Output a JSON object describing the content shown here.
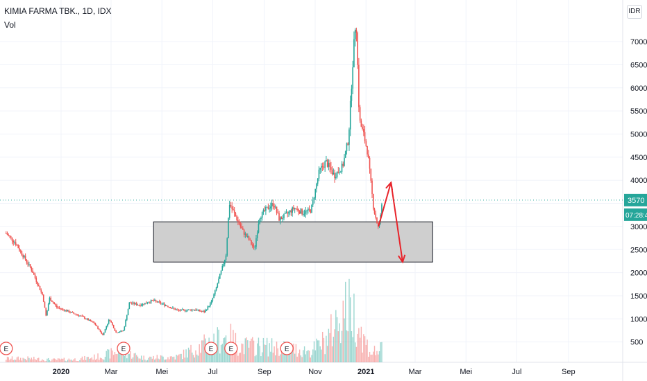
{
  "header": {
    "title": "KIMIA FARMA TBK., 1D, IDX",
    "volume_label": "Vol",
    "currency": "IDR"
  },
  "price_badge": {
    "price": "3570",
    "countdown": "07:28:4",
    "color": "#26a69a"
  },
  "colors": {
    "up": "#26a69a",
    "down": "#ef5350",
    "arrow": "#e8232a",
    "zone_fill": "#cfcfcf",
    "grid": "#f0f3fa",
    "earnings": "#ef5350"
  },
  "chart_data": {
    "type": "candlestick",
    "y_axis": {
      "min": 0,
      "max": 7800,
      "ticks": [
        500,
        1000,
        1500,
        2000,
        2500,
        3000,
        3500,
        4000,
        4500,
        5000,
        5500,
        6000,
        6500,
        7000
      ]
    },
    "x_axis": {
      "ticks": [
        {
          "label": "2020",
          "t": 0
        },
        {
          "label": "Mar",
          "t": 60
        },
        {
          "label": "Mei",
          "t": 121
        },
        {
          "label": "Jul",
          "t": 182
        },
        {
          "label": "Sep",
          "t": 244
        },
        {
          "label": "Nov",
          "t": 305
        },
        {
          "label": "2021",
          "t": 366
        },
        {
          "label": "Mar",
          "t": 425
        },
        {
          "label": "Mei",
          "t": 486
        },
        {
          "label": "Jul",
          "t": 547
        },
        {
          "label": "Sep",
          "t": 609
        }
      ]
    },
    "price_path": [
      [
        -66,
        2850
      ],
      [
        -55,
        2650
      ],
      [
        -45,
        2350
      ],
      [
        -35,
        2050
      ],
      [
        -28,
        1750
      ],
      [
        -22,
        1500
      ],
      [
        -18,
        1050
      ],
      [
        -14,
        1450
      ],
      [
        -5,
        1250
      ],
      [
        10,
        1150
      ],
      [
        25,
        1050
      ],
      [
        40,
        900
      ],
      [
        50,
        650
      ],
      [
        58,
        1000
      ],
      [
        66,
        700
      ],
      [
        75,
        750
      ],
      [
        82,
        1350
      ],
      [
        95,
        1300
      ],
      [
        110,
        1400
      ],
      [
        125,
        1300
      ],
      [
        140,
        1180
      ],
      [
        160,
        1200
      ],
      [
        172,
        1150
      ],
      [
        180,
        1350
      ],
      [
        185,
        1600
      ],
      [
        195,
        2200
      ],
      [
        198,
        2400
      ],
      [
        202,
        3500
      ],
      [
        210,
        3200
      ],
      [
        218,
        2900
      ],
      [
        226,
        2700
      ],
      [
        232,
        2500
      ],
      [
        238,
        3200
      ],
      [
        245,
        3350
      ],
      [
        255,
        3500
      ],
      [
        262,
        3150
      ],
      [
        270,
        3250
      ],
      [
        280,
        3400
      ],
      [
        290,
        3300
      ],
      [
        300,
        3350
      ],
      [
        310,
        4200
      ],
      [
        318,
        4400
      ],
      [
        328,
        4100
      ],
      [
        338,
        4300
      ],
      [
        345,
        4900
      ],
      [
        350,
        6500
      ],
      [
        354,
        7600
      ],
      [
        358,
        5300
      ],
      [
        363,
        5000
      ],
      [
        368,
        4600
      ],
      [
        375,
        3400
      ],
      [
        381,
        2950
      ],
      [
        386,
        3570
      ]
    ],
    "volume": [
      [
        -40,
        60
      ],
      [
        -10,
        40
      ],
      [
        20,
        50
      ],
      [
        45,
        90
      ],
      [
        70,
        180
      ],
      [
        100,
        70
      ],
      [
        140,
        90
      ],
      [
        175,
        300
      ],
      [
        200,
        420
      ],
      [
        215,
        260
      ],
      [
        240,
        260
      ],
      [
        265,
        230
      ],
      [
        300,
        180
      ],
      [
        320,
        380
      ],
      [
        340,
        880
      ],
      [
        350,
        820
      ],
      [
        356,
        650
      ],
      [
        362,
        400
      ],
      [
        372,
        160
      ],
      [
        384,
        200
      ]
    ],
    "volume_scale_max": 1000,
    "earnings_markers": [
      {
        "t": -66,
        "label": "E"
      },
      {
        "t": 75,
        "label": "E"
      },
      {
        "t": 180,
        "label": "E"
      },
      {
        "t": 204,
        "label": "E"
      },
      {
        "t": 271,
        "label": "E"
      }
    ],
    "support_zone": {
      "t_start": 111,
      "t_end": 446,
      "price_low": 2230,
      "price_high": 3100
    },
    "projection_arrows": [
      {
        "from": [
          381,
          3000
        ],
        "to": [
          396,
          3950
        ]
      },
      {
        "from": [
          396,
          3950
        ],
        "to": [
          410,
          2230
        ]
      }
    ],
    "last_price": 3570
  }
}
